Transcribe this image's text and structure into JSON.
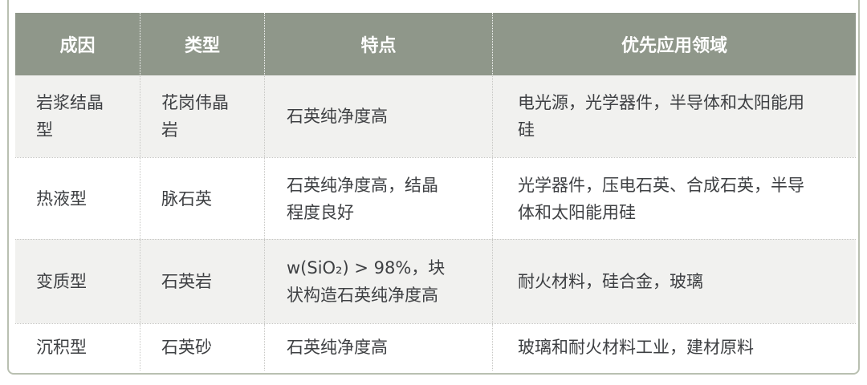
{
  "table": {
    "columns": [
      {
        "label": "成因"
      },
      {
        "label": "类型"
      },
      {
        "label": "特点"
      },
      {
        "label": "优先应用领域"
      }
    ],
    "rows": [
      {
        "cause": "岩浆结晶型",
        "type": "花岗伟晶岩",
        "feature": "石英纯净度高",
        "application": "电光源，光学器件，半导体和太阳能用硅"
      },
      {
        "cause": "热液型",
        "type": "脉石英",
        "feature": "石英纯净度高，结晶程度良好",
        "application": "光学器件，压电石英、合成石英，半导体和太阳能用硅"
      },
      {
        "cause": "变质型",
        "type": "石英岩",
        "feature": "w(SiO₂) > 98%，块状构造石英纯净度高",
        "application": "耐火材料，硅合金，玻璃"
      },
      {
        "cause": "沉积型",
        "type": "石英砂",
        "feature": "石英纯净度高",
        "application": "玻璃和耐火材料工业，建材原料"
      }
    ]
  },
  "colors": {
    "header_bg": "#8f978a",
    "header_text": "#ffffff",
    "row_bg": "#ffffff",
    "row_alt_bg": "#f1f1ef",
    "body_text": "#3e4043",
    "frame_border": "#b9c0b1",
    "divider_dotted": "#c7c7c4"
  }
}
